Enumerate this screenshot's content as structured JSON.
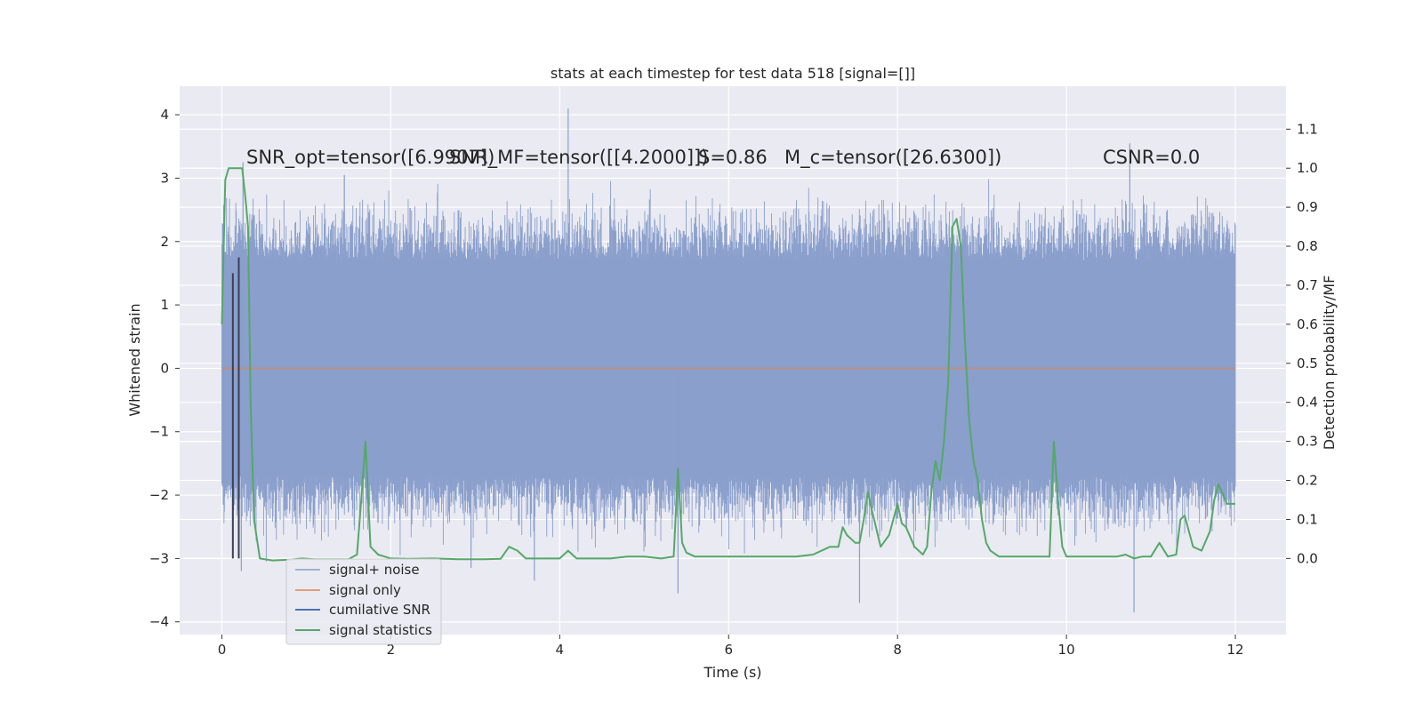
{
  "chart_data": {
    "type": "line",
    "title": "stats at each timestep for test data 518 [signal=[]]",
    "xlabel": "Time (s)",
    "ylabel": "Whitened strain",
    "ylabel_right": "Detection probability/MF",
    "xlim": [
      -0.5,
      12.6
    ],
    "ylim": [
      -4.2,
      4.45
    ],
    "ylim_right": [
      -0.195,
      1.21
    ],
    "x_ticks": [
      0,
      2,
      4,
      6,
      8,
      10,
      12
    ],
    "x_tick_labels": [
      "0",
      "2",
      "4",
      "6",
      "8",
      "10",
      "12"
    ],
    "y_ticks": [
      4,
      3,
      2,
      1,
      0,
      -1,
      -2,
      -3,
      -4
    ],
    "y_tick_labels": [
      "4",
      "3",
      "2",
      "1",
      "0",
      "−1",
      "−2",
      "−3",
      "−4"
    ],
    "y_right_ticks": [
      1.1,
      1.0,
      0.9,
      0.8,
      0.7,
      0.6,
      0.5,
      0.4,
      0.3,
      0.2,
      0.1,
      0.0
    ],
    "y_right_tick_labels": [
      "1.1",
      "1.0",
      "0.9",
      "0.8",
      "0.7",
      "0.6",
      "0.5",
      "0.4",
      "0.3",
      "0.2",
      "0.1",
      "0.0"
    ],
    "annotations": [
      "SNR_opt=tensor([6.9907])",
      "SNR_MF=tensor([[4.2000]])",
      "S=0.86",
      "M_c=tensor([26.6300])",
      "CSNR=0.0"
    ],
    "legend": {
      "placement": "lower-left",
      "entries": [
        "signal+ noise",
        "signal only",
        "cumilative SNR",
        "signal statistics"
      ]
    },
    "colors": {
      "signal_noise": "#8a9fcc",
      "signal_only": "#dd8452",
      "cumulative_snr": "#4c72b0",
      "statistics": "#55a868",
      "plot_bg": "#eaeaf2",
      "grid": "#ffffff"
    },
    "series": [
      {
        "name": "signal+ noise",
        "type": "noise",
        "x_range": [
          0,
          12
        ],
        "core_range": [
          -1.7,
          1.7
        ],
        "spikes": [
          {
            "x": 4.1,
            "y": 4.1
          },
          {
            "x": 10.75,
            "y": 3.55
          },
          {
            "x": 0.25,
            "y": 3.25
          },
          {
            "x": 1.45,
            "y": 3.05
          },
          {
            "x": 10.8,
            "y": -3.85
          },
          {
            "x": 7.55,
            "y": -3.7
          },
          {
            "x": 5.4,
            "y": -3.55
          },
          {
            "x": 3.7,
            "y": -3.35
          },
          {
            "x": 0.23,
            "y": -3.2
          },
          {
            "x": 2.95,
            "y": -3.15
          }
        ]
      },
      {
        "name": "signal only",
        "x": [
          0,
          12
        ],
        "y": [
          0,
          0
        ]
      },
      {
        "name": "cumilative SNR",
        "x": [
          0.13,
          0.13,
          0.2,
          0.2
        ],
        "y": [
          -3.0,
          1.5,
          -3.0,
          1.75
        ]
      },
      {
        "name": "signal statistics",
        "x": [
          0.0,
          0.04,
          0.08,
          0.12,
          0.16,
          0.2,
          0.24,
          0.28,
          0.31,
          0.34,
          0.38,
          0.45,
          0.6,
          0.8,
          0.95,
          1.1,
          1.3,
          1.5,
          1.6,
          1.65,
          1.7,
          1.76,
          1.85,
          2.0,
          2.2,
          2.5,
          2.8,
          3.1,
          3.3,
          3.4,
          3.5,
          3.6,
          3.8,
          4.0,
          4.1,
          4.2,
          4.4,
          4.6,
          4.8,
          5.0,
          5.2,
          5.35,
          5.4,
          5.45,
          5.5,
          5.6,
          5.8,
          6.0,
          6.2,
          6.4,
          6.6,
          6.8,
          7.0,
          7.2,
          7.3,
          7.35,
          7.4,
          7.5,
          7.55,
          7.6,
          7.65,
          7.7,
          7.8,
          7.9,
          8.0,
          8.05,
          8.1,
          8.2,
          8.3,
          8.35,
          8.4,
          8.45,
          8.5,
          8.55,
          8.6,
          8.65,
          8.7,
          8.75,
          8.8,
          8.85,
          8.9,
          8.95,
          9.0,
          9.05,
          9.1,
          9.2,
          9.4,
          9.6,
          9.8,
          9.85,
          9.9,
          9.95,
          10.0,
          10.2,
          10.4,
          10.6,
          10.7,
          10.8,
          10.9,
          11.0,
          11.1,
          11.2,
          11.3,
          11.35,
          11.4,
          11.5,
          11.6,
          11.7,
          11.75,
          11.8,
          11.9,
          12.0
        ],
        "y": [
          0.6,
          0.97,
          1.0,
          1.0,
          1.0,
          1.0,
          1.0,
          0.92,
          0.85,
          0.4,
          0.1,
          0.0,
          -0.005,
          -0.003,
          0.0,
          -0.002,
          -0.002,
          -0.002,
          0.01,
          0.15,
          0.3,
          0.03,
          0.01,
          0.0,
          -0.001,
          0.0,
          -0.002,
          -0.002,
          -0.001,
          0.03,
          0.02,
          0.0,
          0.0,
          0.0,
          0.02,
          0.0,
          0.0,
          0.0,
          0.005,
          0.005,
          0.0,
          0.005,
          0.23,
          0.04,
          0.015,
          0.005,
          0.005,
          0.005,
          0.005,
          0.005,
          0.005,
          0.005,
          0.01,
          0.03,
          0.03,
          0.08,
          0.06,
          0.04,
          0.04,
          0.1,
          0.17,
          0.12,
          0.03,
          0.06,
          0.14,
          0.09,
          0.08,
          0.03,
          0.01,
          0.03,
          0.17,
          0.25,
          0.2,
          0.3,
          0.45,
          0.85,
          0.87,
          0.8,
          0.55,
          0.35,
          0.25,
          0.2,
          0.1,
          0.04,
          0.02,
          0.005,
          0.005,
          0.005,
          0.005,
          0.3,
          0.15,
          0.03,
          0.005,
          0.005,
          0.005,
          0.005,
          0.01,
          0.0,
          0.005,
          0.005,
          0.04,
          0.005,
          0.01,
          0.1,
          0.11,
          0.03,
          0.02,
          0.07,
          0.15,
          0.19,
          0.14,
          0.14
        ]
      }
    ]
  }
}
